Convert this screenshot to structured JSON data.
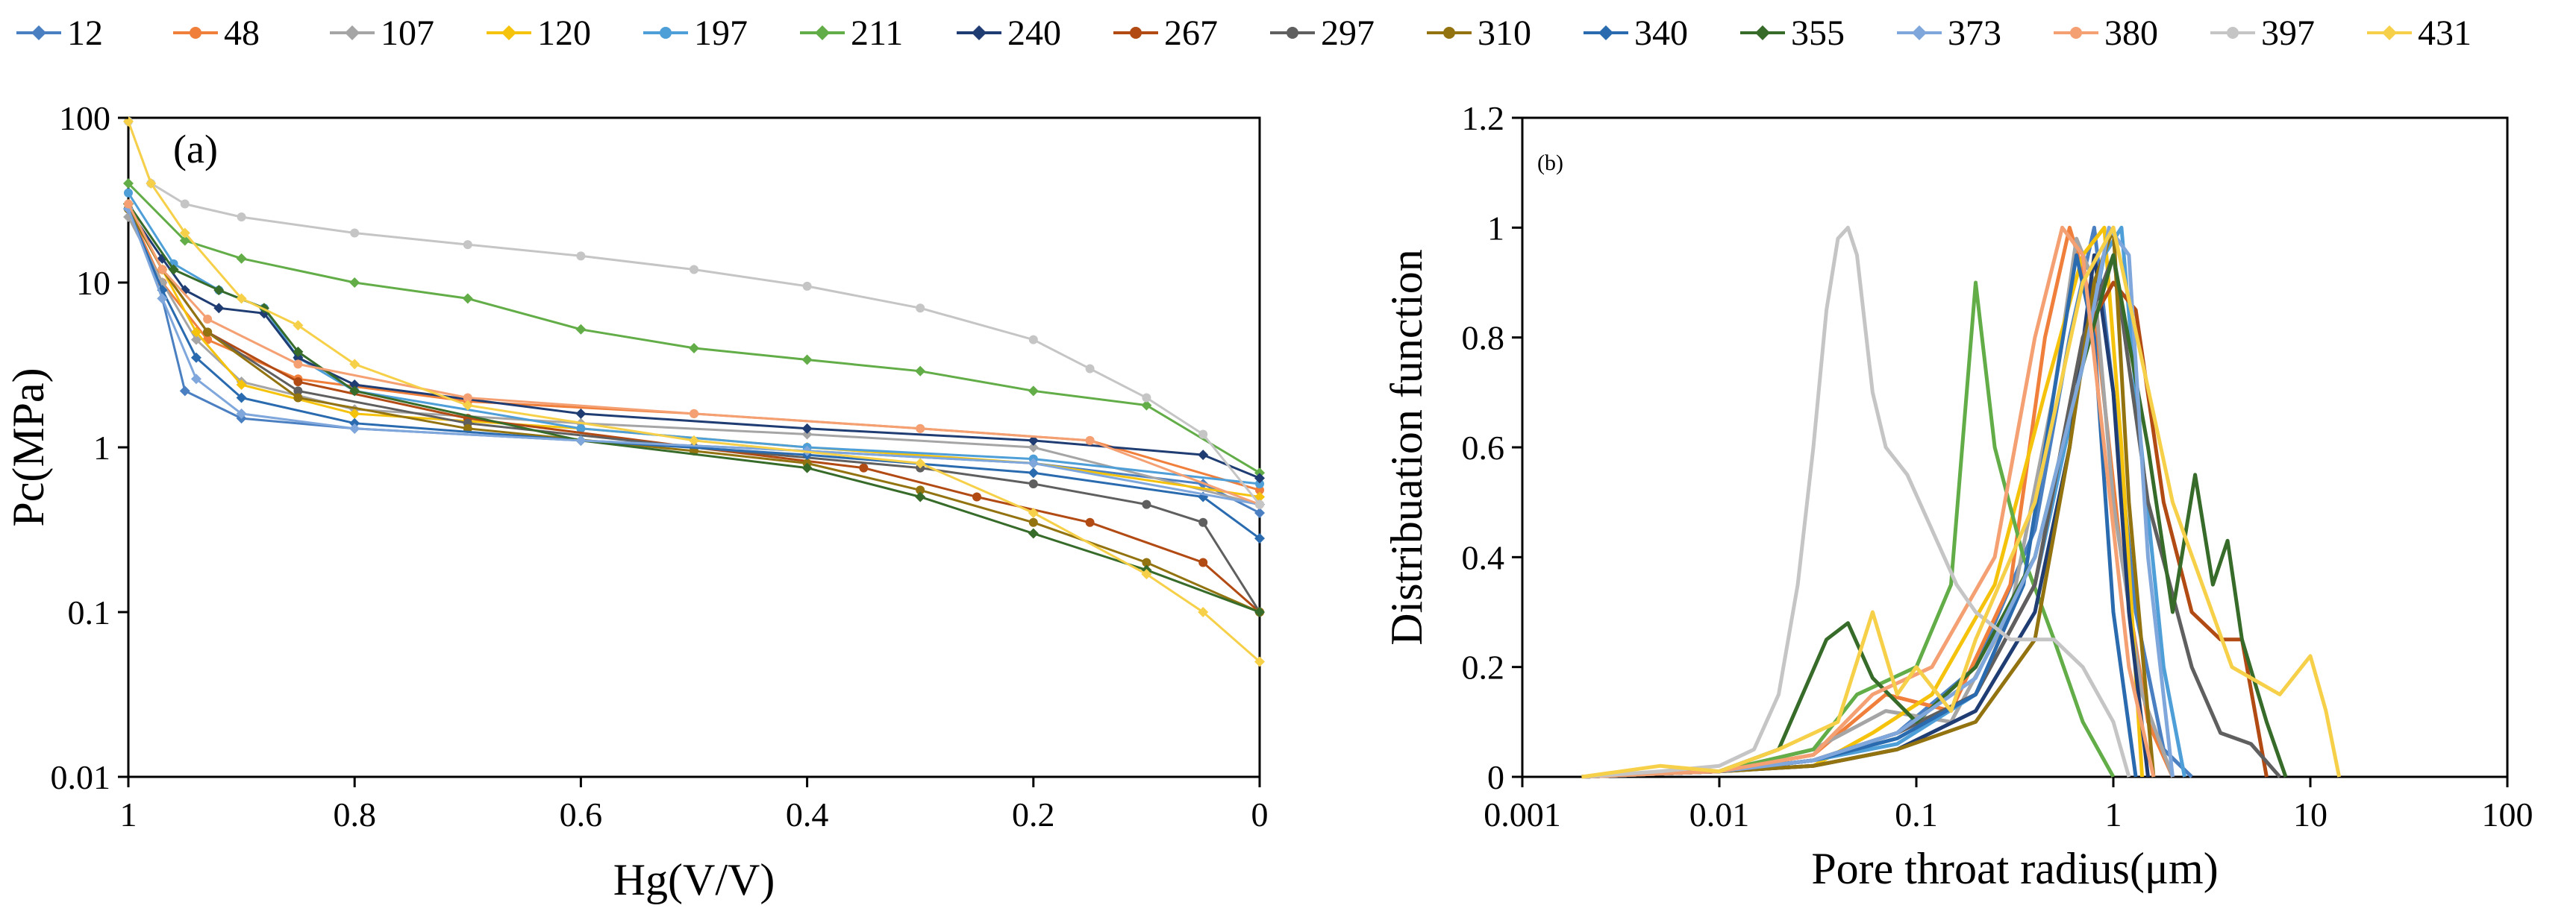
{
  "legend_samples": [
    "12",
    "48",
    "107",
    "120",
    "197",
    "211",
    "240",
    "267",
    "297",
    "310",
    "340",
    "355",
    "373",
    "380",
    "397",
    "431"
  ],
  "series_colors": [
    "#4a7fc1",
    "#f07f3c",
    "#a5a5a5",
    "#f5c20c",
    "#4e9ed8",
    "#62ad47",
    "#1f3d73",
    "#b24a14",
    "#5f5f5f",
    "#927310",
    "#2a6bb0",
    "#376b2a",
    "#7fa7dc",
    "#f4a072",
    "#c5c5c5",
    "#f7d04a"
  ],
  "chart_data": [
    {
      "type": "line",
      "panel_label": "(a)",
      "xlabel": "Hg(V/V)",
      "ylabel": "Pc(MPa)",
      "xlim": [
        1,
        0
      ],
      "ylim": [
        0.01,
        100
      ],
      "yscale": "log",
      "xticks": [
        "1",
        "0.8",
        "0.6",
        "0.4",
        "0.2",
        "0"
      ],
      "yticks": [
        "0.01",
        "0.1",
        "1",
        "10",
        "100"
      ],
      "series": [
        {
          "name": "12",
          "x": [
            1,
            0.97,
            0.95,
            0.9,
            0.8,
            0.6,
            0.4,
            0.2,
            0.05,
            0
          ],
          "y": [
            30,
            8,
            2.2,
            1.5,
            1.3,
            1.1,
            0.95,
            0.8,
            0.6,
            0.4
          ]
        },
        {
          "name": "48",
          "x": [
            1,
            0.97,
            0.93,
            0.85,
            0.7,
            0.5,
            0.3,
            0.15,
            0
          ],
          "y": [
            28,
            10,
            4.5,
            2.6,
            1.9,
            1.6,
            1.3,
            1.1,
            0.55
          ]
        },
        {
          "name": "107",
          "x": [
            1,
            0.97,
            0.94,
            0.9,
            0.8,
            0.6,
            0.4,
            0.2,
            0
          ],
          "y": [
            25,
            10,
            4.5,
            2.5,
            1.7,
            1.4,
            1.2,
            1.0,
            0.45
          ]
        },
        {
          "name": "120",
          "x": [
            1,
            0.97,
            0.94,
            0.9,
            0.8,
            0.6,
            0.4,
            0.2,
            0
          ],
          "y": [
            30,
            12,
            5,
            2.4,
            1.6,
            1.3,
            1.0,
            0.8,
            0.5
          ]
        },
        {
          "name": "197",
          "x": [
            1,
            0.96,
            0.92,
            0.88,
            0.85,
            0.8,
            0.6,
            0.4,
            0.2,
            0
          ],
          "y": [
            35,
            13,
            9,
            7,
            3.5,
            2.2,
            1.3,
            1.0,
            0.85,
            0.6
          ]
        },
        {
          "name": "211",
          "x": [
            1,
            0.95,
            0.9,
            0.8,
            0.7,
            0.6,
            0.5,
            0.4,
            0.3,
            0.2,
            0.1,
            0
          ],
          "y": [
            40,
            18,
            14,
            10,
            8,
            5.2,
            4,
            3.4,
            2.9,
            2.2,
            1.8,
            0.7
          ]
        },
        {
          "name": "240",
          "x": [
            1,
            0.97,
            0.95,
            0.92,
            0.88,
            0.85,
            0.8,
            0.6,
            0.4,
            0.2,
            0.05,
            0
          ],
          "y": [
            28,
            14,
            9,
            7,
            6.5,
            3.5,
            2.4,
            1.6,
            1.3,
            1.1,
            0.9,
            0.65
          ]
        },
        {
          "name": "267",
          "x": [
            1,
            0.97,
            0.93,
            0.85,
            0.7,
            0.5,
            0.35,
            0.25,
            0.15,
            0.05,
            0
          ],
          "y": [
            28,
            12,
            5,
            2.5,
            1.5,
            1.0,
            0.75,
            0.5,
            0.35,
            0.2,
            0.1
          ]
        },
        {
          "name": "297",
          "x": [
            1,
            0.97,
            0.93,
            0.85,
            0.7,
            0.5,
            0.3,
            0.2,
            0.1,
            0.05,
            0
          ],
          "y": [
            28,
            12,
            5,
            2.2,
            1.4,
            1.0,
            0.75,
            0.6,
            0.45,
            0.35,
            0.1
          ]
        },
        {
          "name": "310",
          "x": [
            1,
            0.97,
            0.93,
            0.85,
            0.7,
            0.5,
            0.4,
            0.3,
            0.2,
            0.1,
            0
          ],
          "y": [
            28,
            12,
            5,
            2.0,
            1.3,
            0.95,
            0.8,
            0.55,
            0.35,
            0.2,
            0.1
          ]
        },
        {
          "name": "340",
          "x": [
            1,
            0.97,
            0.94,
            0.9,
            0.8,
            0.6,
            0.4,
            0.2,
            0.05,
            0
          ],
          "y": [
            28,
            9,
            3.5,
            2.0,
            1.4,
            1.1,
            0.9,
            0.7,
            0.5,
            0.28
          ]
        },
        {
          "name": "355",
          "x": [
            1,
            0.96,
            0.92,
            0.88,
            0.85,
            0.8,
            0.6,
            0.4,
            0.3,
            0.2,
            0.1,
            0
          ],
          "y": [
            30,
            12,
            9,
            7,
            3.8,
            2.2,
            1.1,
            0.75,
            0.5,
            0.3,
            0.18,
            0.1
          ]
        },
        {
          "name": "373",
          "x": [
            1,
            0.97,
            0.94,
            0.9,
            0.8,
            0.6,
            0.4,
            0.2,
            0
          ],
          "y": [
            28,
            8,
            2.6,
            1.6,
            1.3,
            1.1,
            0.95,
            0.8,
            0.45
          ]
        },
        {
          "name": "380",
          "x": [
            1,
            0.97,
            0.93,
            0.85,
            0.7,
            0.5,
            0.3,
            0.15,
            0
          ],
          "y": [
            30,
            12,
            6,
            3.2,
            2.0,
            1.6,
            1.3,
            1.1,
            0.45
          ]
        },
        {
          "name": "397",
          "x": [
            1,
            0.98,
            0.95,
            0.9,
            0.8,
            0.7,
            0.6,
            0.5,
            0.4,
            0.3,
            0.2,
            0.15,
            0.1,
            0.05,
            0
          ],
          "y": [
            95,
            40,
            30,
            25,
            20,
            17,
            14.5,
            12,
            9.5,
            7,
            4.5,
            3,
            2,
            1.2,
            0.45
          ]
        },
        {
          "name": "431",
          "x": [
            1,
            0.98,
            0.95,
            0.9,
            0.85,
            0.8,
            0.7,
            0.5,
            0.3,
            0.2,
            0.1,
            0.05,
            0
          ],
          "y": [
            95,
            40,
            20,
            8,
            5.5,
            3.2,
            1.8,
            1.1,
            0.8,
            0.4,
            0.17,
            0.1,
            0.05
          ]
        }
      ]
    },
    {
      "type": "line",
      "panel_label": "(b)",
      "xlabel": "Pore throat radius(μm)",
      "ylabel": "Distribuation function",
      "xlim": [
        0.001,
        100
      ],
      "ylim": [
        0,
        1.2
      ],
      "xscale": "log",
      "xticks": [
        "0.001",
        "0.01",
        "0.1",
        "1",
        "10",
        "100"
      ],
      "yticks": [
        "0",
        "0.2",
        "0.4",
        "0.6",
        "0.8",
        "1",
        "1.2"
      ],
      "series": [
        {
          "name": "12",
          "x": [
            0.002,
            0.01,
            0.03,
            0.08,
            0.2,
            0.4,
            0.6,
            0.8,
            1.0,
            1.3,
            1.8,
            2.5
          ],
          "y": [
            0,
            0.01,
            0.03,
            0.08,
            0.2,
            0.45,
            0.8,
            1.0,
            0.7,
            0.3,
            0.05,
            0
          ]
        },
        {
          "name": "48",
          "x": [
            0.002,
            0.01,
            0.03,
            0.07,
            0.15,
            0.3,
            0.45,
            0.6,
            0.8,
            1.1,
            1.5,
            2.0
          ],
          "y": [
            0,
            0.01,
            0.04,
            0.15,
            0.12,
            0.35,
            0.8,
            1.0,
            0.85,
            0.4,
            0.1,
            0
          ]
        },
        {
          "name": "107",
          "x": [
            0.002,
            0.01,
            0.03,
            0.07,
            0.15,
            0.3,
            0.5,
            0.65,
            0.8,
            1.0,
            1.4,
            2.0
          ],
          "y": [
            0,
            0.01,
            0.05,
            0.12,
            0.1,
            0.3,
            0.7,
            0.98,
            0.9,
            0.5,
            0.15,
            0
          ]
        },
        {
          "name": "120",
          "x": [
            0.002,
            0.01,
            0.03,
            0.06,
            0.12,
            0.25,
            0.45,
            0.7,
            0.9,
            1.1,
            1.4
          ],
          "y": [
            0,
            0.01,
            0.02,
            0.08,
            0.15,
            0.35,
            0.7,
            0.95,
            1.0,
            0.6,
            0
          ]
        },
        {
          "name": "197",
          "x": [
            0.002,
            0.01,
            0.03,
            0.08,
            0.2,
            0.4,
            0.7,
            0.9,
            1.1,
            1.3,
            1.8,
            2.3
          ],
          "y": [
            0,
            0.01,
            0.03,
            0.06,
            0.15,
            0.35,
            0.75,
            0.95,
            1.0,
            0.7,
            0.2,
            0
          ]
        },
        {
          "name": "211",
          "x": [
            0.002,
            0.01,
            0.03,
            0.05,
            0.1,
            0.15,
            0.2,
            0.25,
            0.35,
            0.5,
            0.7,
            1.0
          ],
          "y": [
            0,
            0.01,
            0.05,
            0.15,
            0.2,
            0.35,
            0.9,
            0.6,
            0.4,
            0.25,
            0.1,
            0
          ]
        },
        {
          "name": "240",
          "x": [
            0.002,
            0.01,
            0.03,
            0.08,
            0.2,
            0.4,
            0.6,
            0.8,
            1.0,
            1.2,
            1.5
          ],
          "y": [
            0,
            0.01,
            0.02,
            0.05,
            0.12,
            0.3,
            0.6,
            0.95,
            0.7,
            0.3,
            0
          ]
        },
        {
          "name": "267",
          "x": [
            0.002,
            0.01,
            0.03,
            0.08,
            0.2,
            0.4,
            0.7,
            1.0,
            1.3,
            1.8,
            2.5,
            3.5,
            4.5,
            6
          ],
          "y": [
            0,
            0.01,
            0.03,
            0.08,
            0.15,
            0.35,
            0.8,
            0.9,
            0.85,
            0.5,
            0.3,
            0.25,
            0.25,
            0
          ]
        },
        {
          "name": "297",
          "x": [
            0.002,
            0.01,
            0.03,
            0.08,
            0.2,
            0.4,
            0.7,
            1.0,
            1.5,
            2.5,
            3.5,
            5,
            7
          ],
          "y": [
            0,
            0.01,
            0.03,
            0.08,
            0.15,
            0.35,
            0.8,
            0.95,
            0.5,
            0.2,
            0.08,
            0.06,
            0
          ]
        },
        {
          "name": "310",
          "x": [
            0.002,
            0.01,
            0.03,
            0.08,
            0.2,
            0.4,
            0.6,
            0.8,
            1.0,
            1.2,
            1.6
          ],
          "y": [
            0,
            0.01,
            0.02,
            0.05,
            0.1,
            0.25,
            0.6,
            0.9,
            1.0,
            0.5,
            0
          ]
        },
        {
          "name": "340",
          "x": [
            0.002,
            0.01,
            0.03,
            0.08,
            0.2,
            0.35,
            0.5,
            0.65,
            0.8,
            1.0,
            1.3
          ],
          "y": [
            0,
            0.01,
            0.03,
            0.07,
            0.15,
            0.35,
            0.7,
            0.95,
            0.8,
            0.3,
            0
          ]
        },
        {
          "name": "355",
          "x": [
            0.002,
            0.01,
            0.02,
            0.035,
            0.045,
            0.06,
            0.1,
            0.2,
            0.4,
            0.7,
            1.0,
            1.5,
            2.0,
            2.6,
            3.2,
            3.8,
            4.5,
            6,
            7.5
          ],
          "y": [
            0,
            0.01,
            0.05,
            0.25,
            0.28,
            0.18,
            0.1,
            0.2,
            0.4,
            0.75,
            0.95,
            0.6,
            0.3,
            0.55,
            0.35,
            0.43,
            0.25,
            0.1,
            0
          ]
        },
        {
          "name": "373",
          "x": [
            0.002,
            0.01,
            0.03,
            0.08,
            0.2,
            0.4,
            0.7,
            0.95,
            1.2,
            1.5,
            2.0
          ],
          "y": [
            0,
            0.01,
            0.03,
            0.08,
            0.18,
            0.4,
            0.75,
            1.0,
            0.95,
            0.4,
            0
          ]
        },
        {
          "name": "380",
          "x": [
            0.002,
            0.01,
            0.03,
            0.06,
            0.12,
            0.25,
            0.4,
            0.55,
            0.7,
            0.9,
            1.2,
            1.6
          ],
          "y": [
            0,
            0.01,
            0.04,
            0.15,
            0.2,
            0.4,
            0.8,
            1.0,
            0.95,
            0.6,
            0.2,
            0
          ]
        },
        {
          "name": "397",
          "x": [
            0.002,
            0.005,
            0.01,
            0.015,
            0.02,
            0.025,
            0.03,
            0.035,
            0.04,
            0.045,
            0.05,
            0.06,
            0.07,
            0.09,
            0.12,
            0.16,
            0.2,
            0.3,
            0.5,
            0.7,
            1.0,
            1.2
          ],
          "y": [
            0,
            0.01,
            0.02,
            0.05,
            0.15,
            0.35,
            0.6,
            0.85,
            0.98,
            1.0,
            0.95,
            0.7,
            0.6,
            0.55,
            0.45,
            0.35,
            0.3,
            0.25,
            0.25,
            0.2,
            0.1,
            0
          ]
        },
        {
          "name": "431",
          "x": [
            0.002,
            0.005,
            0.01,
            0.02,
            0.04,
            0.06,
            0.08,
            0.1,
            0.15,
            0.2,
            0.4,
            0.7,
            1.0,
            2,
            4,
            7,
            10,
            12,
            14
          ],
          "y": [
            0,
            0.02,
            0.01,
            0.05,
            0.1,
            0.3,
            0.15,
            0.2,
            0.12,
            0.25,
            0.5,
            0.9,
            1.0,
            0.5,
            0.2,
            0.15,
            0.22,
            0.12,
            0
          ]
        }
      ]
    }
  ]
}
